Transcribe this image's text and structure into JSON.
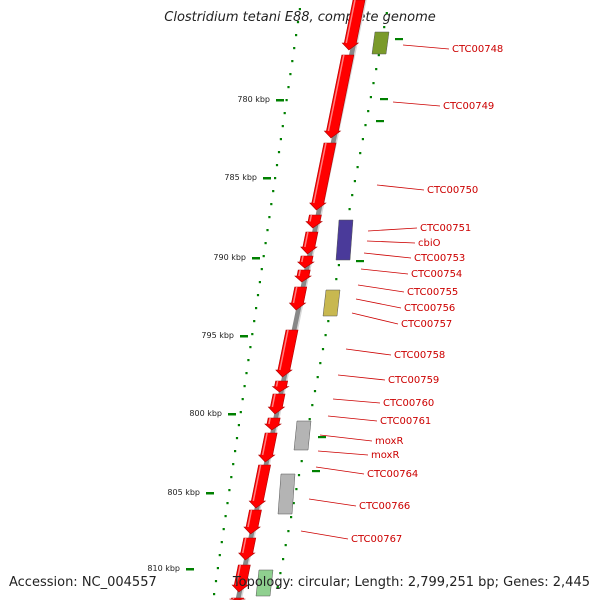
{
  "title": "Clostridium tetani E88, complete genome",
  "footer": {
    "accession": "Accession: NC_004557",
    "stats": "Topology: circular; Length: 2,799,251 bp; Genes: 2,445"
  },
  "scale": {
    "unit": "kbp",
    "ticks": [
      "780 kbp",
      "785 kbp",
      "790 kbp",
      "795 kbp",
      "800 kbp",
      "805 kbp",
      "810 kbp"
    ]
  },
  "colors": {
    "cds": "#ff0000",
    "label": "#cc0000",
    "backbone": "#888888",
    "tick": "#008000",
    "cog_green": "#7a9a2a",
    "cog_blue": "#4a3a9a",
    "cog_khaki": "#c8b850",
    "cog_grey": "#b4b4b4",
    "cog_lightgreen": "#8fd08f"
  },
  "gene_labels": [
    "CTC00748",
    "CTC00749",
    "CTC00750",
    "CTC00751",
    "cbiO",
    "CTC00753",
    "CTC00754",
    "CTC00755",
    "CTC00756",
    "CTC00757",
    "CTC00758",
    "CTC00759",
    "CTC00760",
    "CTC00761",
    "moxR",
    "moxR",
    "CTC00764",
    "CTC00766",
    "CTC00767"
  ]
}
